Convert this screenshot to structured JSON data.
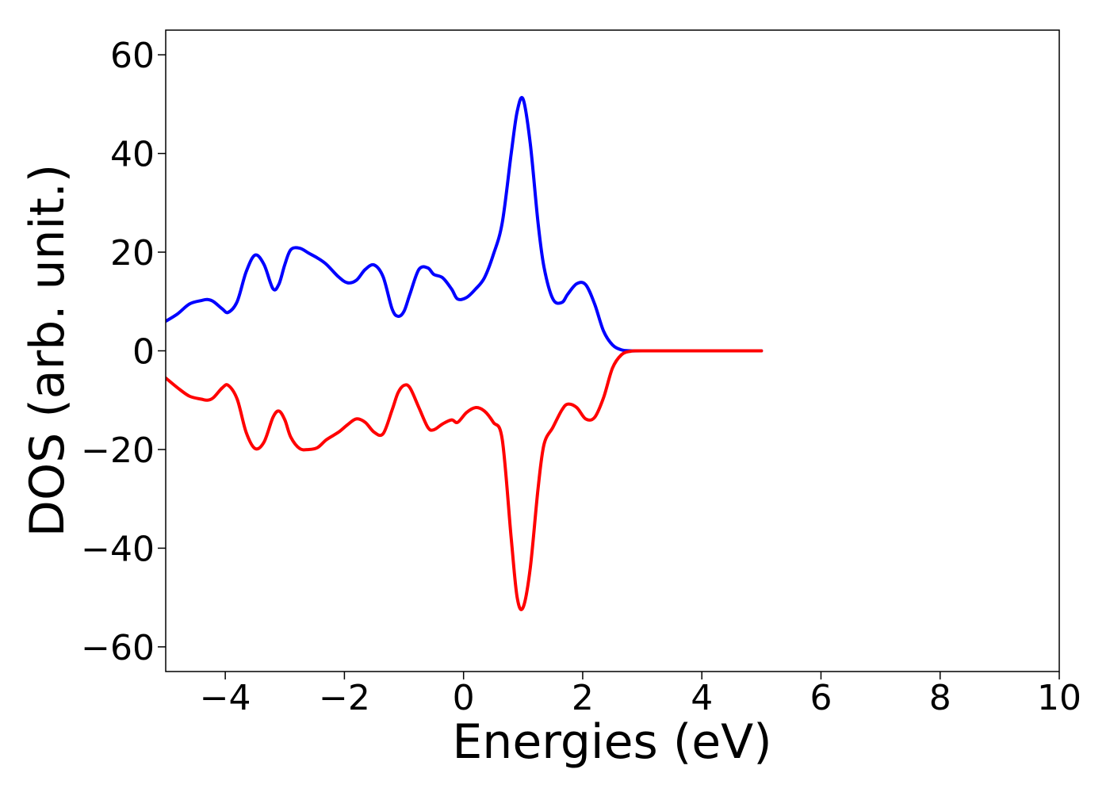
{
  "chart_data": {
    "type": "line",
    "title": "",
    "xlabel": "Energies (eV)",
    "ylabel": "DOS (arb. unit.)",
    "xlim": [
      -5,
      10
    ],
    "ylim": [
      -65,
      65
    ],
    "grid": false,
    "x_ticks": [
      -4,
      -2,
      0,
      2,
      4,
      6,
      8,
      10
    ],
    "x_tick_labels": [
      "−4",
      "−2",
      "0",
      "2",
      "4",
      "6",
      "8",
      "10"
    ],
    "y_ticks": [
      60,
      40,
      20,
      0,
      -20,
      -40,
      -60
    ],
    "y_tick_labels": [
      "60",
      "40",
      "20",
      "0",
      "−20",
      "−40",
      "−60"
    ],
    "series": [
      {
        "color": "#0000ff",
        "x": [
          -5.0,
          -4.8,
          -4.6,
          -4.4,
          -4.3,
          -4.2,
          -4.05,
          -3.95,
          -3.8,
          -3.65,
          -3.5,
          -3.35,
          -3.2,
          -3.1,
          -3.0,
          -2.9,
          -2.75,
          -2.6,
          -2.45,
          -2.3,
          -2.1,
          -1.95,
          -1.8,
          -1.65,
          -1.5,
          -1.35,
          -1.2,
          -1.1,
          -1.0,
          -0.9,
          -0.75,
          -0.6,
          -0.5,
          -0.35,
          -0.2,
          -0.1,
          0.05,
          0.2,
          0.35,
          0.5,
          0.65,
          0.8,
          0.9,
          1.0,
          1.12,
          1.25,
          1.35,
          1.5,
          1.65,
          1.75,
          1.9,
          2.05,
          2.2,
          2.35,
          2.5,
          2.65,
          2.8,
          3.0,
          4.0,
          5.0
        ],
        "y": [
          6,
          7.5,
          9.5,
          10.2,
          10.4,
          10,
          8.5,
          7.8,
          10,
          16,
          19.4,
          17.5,
          12.6,
          13.5,
          17.5,
          20.5,
          20.8,
          19.8,
          18.8,
          17.5,
          15,
          13.8,
          14.3,
          16.5,
          17.4,
          15,
          8.5,
          7,
          8,
          11.5,
          16.5,
          16.8,
          15.5,
          14.8,
          12.5,
          10.5,
          10.8,
          12.5,
          14.8,
          19.5,
          26,
          40,
          48.5,
          51,
          42,
          26,
          17,
          10.5,
          9.8,
          11.5,
          13.6,
          13.4,
          9.5,
          4,
          1.2,
          0.2,
          0,
          0,
          0,
          0
        ]
      },
      {
        "color": "#ff0000",
        "x": [
          -5.0,
          -4.8,
          -4.6,
          -4.4,
          -4.3,
          -4.2,
          -4.05,
          -3.95,
          -3.8,
          -3.65,
          -3.5,
          -3.35,
          -3.2,
          -3.1,
          -3.0,
          -2.9,
          -2.75,
          -2.6,
          -2.45,
          -2.3,
          -2.1,
          -1.95,
          -1.8,
          -1.65,
          -1.5,
          -1.35,
          -1.2,
          -1.1,
          -1.0,
          -0.9,
          -0.75,
          -0.6,
          -0.5,
          -0.35,
          -0.2,
          -0.1,
          0.05,
          0.2,
          0.35,
          0.5,
          0.65,
          0.8,
          0.9,
          1.0,
          1.12,
          1.25,
          1.35,
          1.5,
          1.65,
          1.75,
          1.9,
          2.05,
          2.2,
          2.35,
          2.5,
          2.65,
          2.8,
          3.0,
          4.0,
          5.0
        ],
        "y": [
          -5.5,
          -7.5,
          -9.2,
          -9.8,
          -10,
          -9.5,
          -7.5,
          -7,
          -9.8,
          -16.5,
          -19.8,
          -18.5,
          -13.5,
          -12.2,
          -14,
          -17.5,
          -19.8,
          -20,
          -19.6,
          -18,
          -16.5,
          -15,
          -13.8,
          -14.5,
          -16.5,
          -16.8,
          -12,
          -8.5,
          -7,
          -7.5,
          -11.5,
          -15.5,
          -16,
          -14.8,
          -14,
          -14.5,
          -12.5,
          -11.5,
          -12.2,
          -14.5,
          -18,
          -38,
          -50,
          -52,
          -44,
          -28,
          -19,
          -15.5,
          -12,
          -10.8,
          -11.5,
          -13.8,
          -13.5,
          -9.5,
          -3.5,
          -0.8,
          -0.1,
          0,
          0,
          0
        ]
      }
    ]
  }
}
